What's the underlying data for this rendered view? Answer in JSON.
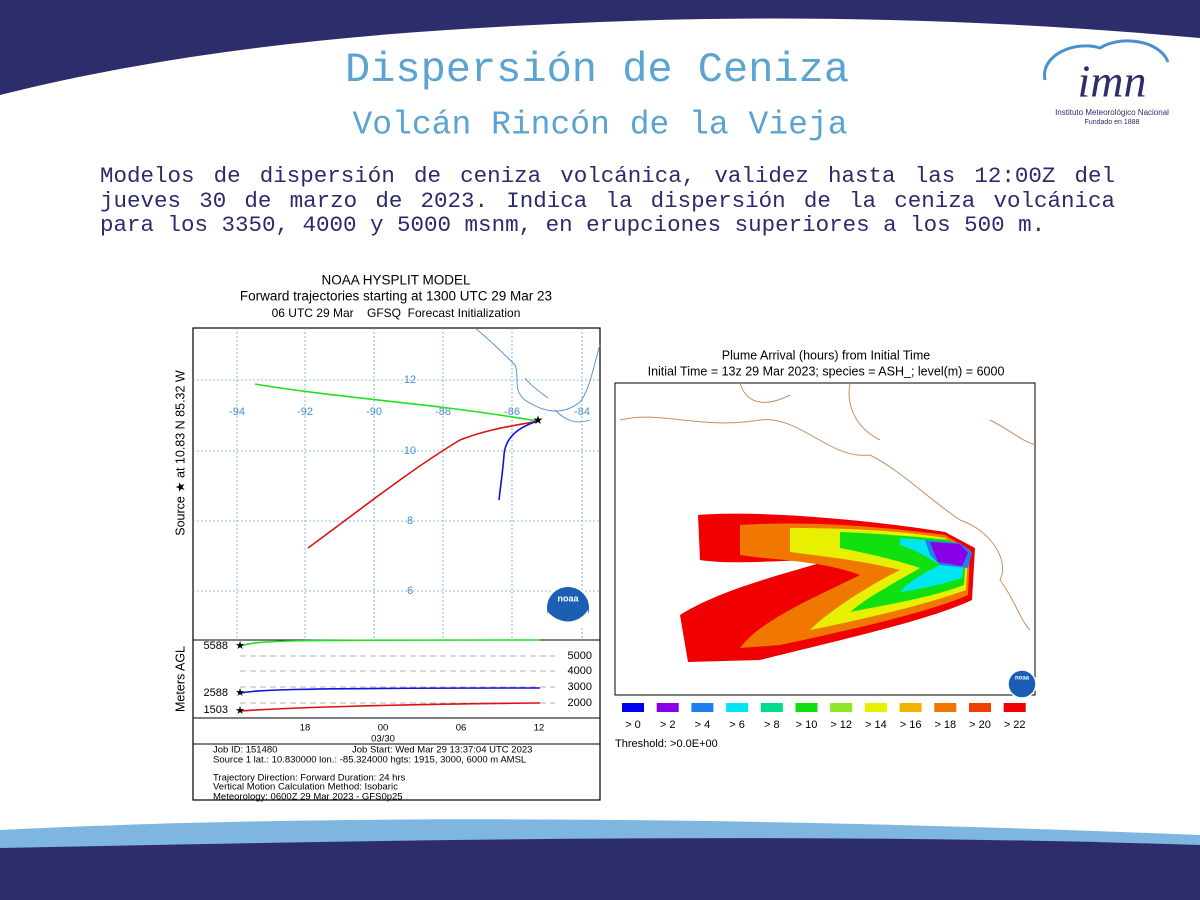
{
  "header": {
    "title": "Dispersión de Ceniza",
    "subtitle": "Volcán Rincón de la Vieja"
  },
  "logo": {
    "name": "imn",
    "line1": "Instituto Meteorológico Nacional",
    "line2": "Fundado en 1888"
  },
  "paragraph": "Modelos de dispersión de ceniza volcánica, validez hasta las 12:00Z del jueves 30 de marzo de 2023. Indica la dispersión de la ceniza volcánica para los 3350, 4000 y 5000 msnm, en erupciones superiores a los 500 m.",
  "hysplit": {
    "title": [
      "NOAA HYSPLIT MODEL",
      "Forward trajectories starting at 1300 UTC 29 Mar 23",
      "06 UTC 29 Mar    GFSQ  Forecast Initialization"
    ],
    "source_label": "Source ★ at 10.83 N 85.32 W",
    "lon_labels": [
      "-94",
      "-92",
      "-90",
      "-88",
      "-86",
      "-84"
    ],
    "lat_labels": [
      "12",
      "10",
      "8",
      "6"
    ],
    "logo": "noaa",
    "height_axis_label": "Meters AGL",
    "start_heights": [
      "5588",
      "2588",
      "1503"
    ],
    "height_scale": [
      "5000",
      "4000",
      "3000",
      "2000"
    ],
    "time_labels": [
      "18",
      "00",
      "06",
      "12"
    ],
    "date_label": "03/30",
    "footer": {
      "job_id": "Job ID: 151480",
      "job_start": "Job Start: Wed Mar 29 13:37:04 UTC 2023",
      "source": "Source 1 lat.: 10.830000  lon.: -85.324000  hgts: 1915, 3000, 6000 m AMSL",
      "direction": "Trajectory Direction: Forward      Duration: 24 hrs",
      "method": "Vertical Motion Calculation Method:        Isobaric",
      "meteorology": "Meteorology: 0600Z 29 Mar 2023 - GFS0p25"
    }
  },
  "plume": {
    "title": [
      "Plume Arrival (hours) from Initial Time",
      "Initial Time = 13z 29 Mar 2023;  species = ASH_;  level(m) =  6000"
    ],
    "legend": [
      {
        "label": "> 0",
        "color": "#0000f0"
      },
      {
        "label": "> 2",
        "color": "#8a00e6"
      },
      {
        "label": "> 4",
        "color": "#1e7ff0"
      },
      {
        "label": "> 6",
        "color": "#00e6f0"
      },
      {
        "label": "> 8",
        "color": "#00dc8c"
      },
      {
        "label": "> 10",
        "color": "#10e010"
      },
      {
        "label": "> 12",
        "color": "#8ce628"
      },
      {
        "label": "> 14",
        "color": "#e6f000"
      },
      {
        "label": "> 16",
        "color": "#f0b400"
      },
      {
        "label": "> 18",
        "color": "#f07800"
      },
      {
        "label": "> 20",
        "color": "#f04000"
      },
      {
        "label": "> 22",
        "color": "#f00000"
      }
    ],
    "threshold": "Threshold: >0.0E+00",
    "logo": "noaa"
  }
}
